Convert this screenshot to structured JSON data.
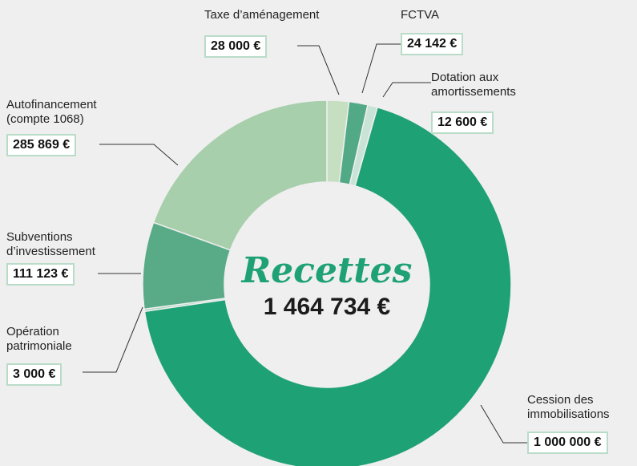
{
  "chart_data": {
    "type": "pie",
    "donut": true,
    "title": "Recettes",
    "total_label": "1 464 734 €",
    "categories": [
      "Taxe d’aménagement",
      "FCTVA",
      "Dotation aux amortissements",
      "Cession des immobilisations",
      "Opération patrimoniale",
      "Subventions d’investissement",
      "Autofinancement (compte 1068)"
    ],
    "values": [
      28000,
      24142,
      12600,
      1000000,
      3000,
      111123,
      285869
    ],
    "value_labels": [
      "28 000 €",
      "24 142 €",
      "12 600 €",
      "1 000 000 €",
      "3 000 €",
      "111 123 €",
      "285 869 €"
    ],
    "colors": [
      "#c5dfc0",
      "#52a985",
      "#c9e4d6",
      "#1fa176",
      "#a8d5be",
      "#59ab88",
      "#a7cfab"
    ]
  }
}
